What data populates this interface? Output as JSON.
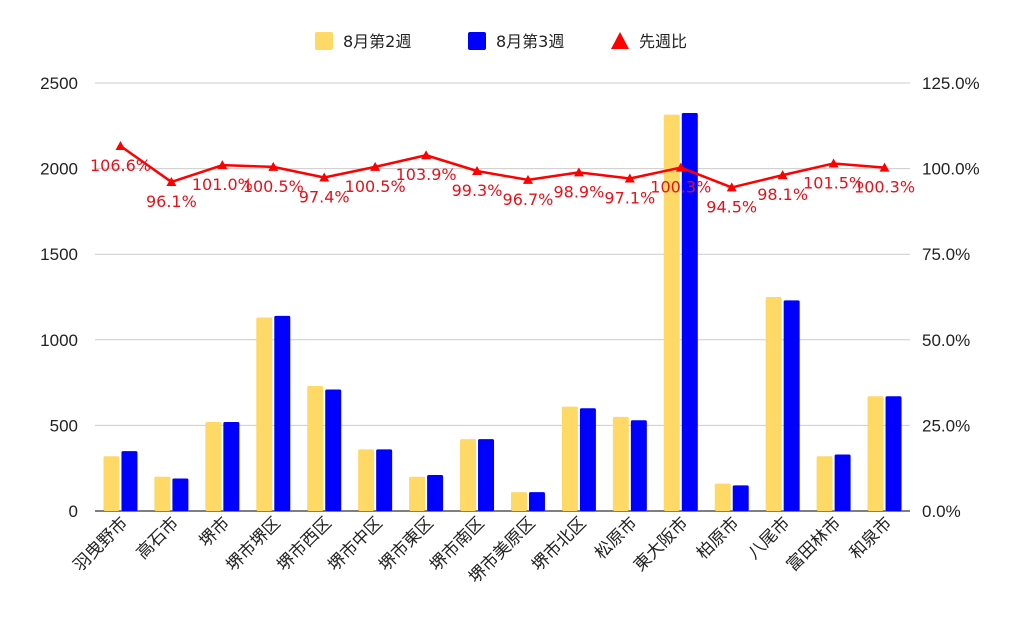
{
  "chart_data": {
    "type": "bar",
    "title": "",
    "categories": [
      "羽曳野市",
      "高石市",
      "堺市",
      "堺市堺区",
      "堺市西区",
      "堺市中区",
      "堺市東区",
      "堺市南区",
      "堺市美原区",
      "堺市北区",
      "松原市",
      "東大阪市",
      "柏原市",
      "八尾市",
      "富田林市",
      "和泉市"
    ],
    "series": [
      {
        "name": "8月第2週",
        "type": "bar",
        "axis": "left",
        "color": "#ffd966",
        "values": [
          320,
          200,
          520,
          1130,
          730,
          360,
          200,
          420,
          110,
          610,
          550,
          2315,
          160,
          1250,
          320,
          670
        ]
      },
      {
        "name": "8月第3週",
        "type": "bar",
        "axis": "left",
        "color": "#0000ff",
        "values": [
          350,
          190,
          520,
          1140,
          710,
          360,
          210,
          420,
          110,
          600,
          530,
          2325,
          150,
          1230,
          330,
          670
        ]
      },
      {
        "name": "先週比",
        "type": "line",
        "axis": "right",
        "color": "#ff0000",
        "marker": "triangle",
        "values": [
          106.6,
          96.1,
          101.0,
          100.5,
          97.4,
          100.5,
          103.9,
          99.3,
          96.7,
          98.9,
          97.1,
          100.3,
          94.5,
          98.1,
          101.5,
          100.3
        ],
        "labels": [
          "106.6%",
          "96.1%",
          "101.0%",
          "100.5%",
          "97.4%",
          "100.5%",
          "103.9%",
          "99.3%",
          "96.7%",
          "98.9%",
          "97.1%",
          "100.3%",
          "94.5%",
          "98.1%",
          "101.5%",
          "100.3%"
        ]
      }
    ],
    "y_left": {
      "min": 0,
      "max": 2500,
      "ticks": [
        "0",
        "500",
        "1000",
        "1500",
        "2000",
        "2500"
      ]
    },
    "y_right": {
      "min": 0,
      "max": 125,
      "ticks": [
        "0.0%",
        "25.0%",
        "50.0%",
        "75.0%",
        "100.0%",
        "125.0%"
      ]
    },
    "grid": true,
    "legend_position": "top"
  }
}
